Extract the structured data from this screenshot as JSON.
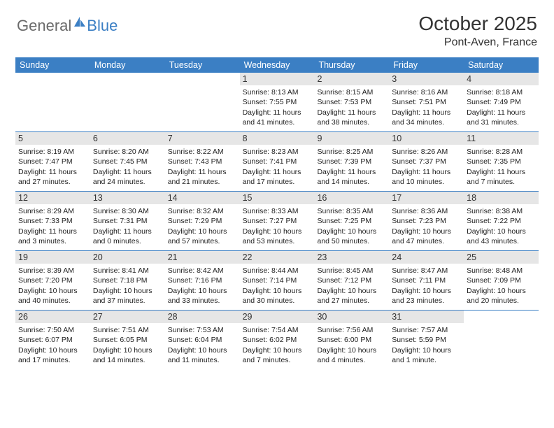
{
  "brand": {
    "text1": "General",
    "text2": "Blue"
  },
  "title": "October 2025",
  "location": "Pont-Aven, France",
  "dow": [
    "Sunday",
    "Monday",
    "Tuesday",
    "Wednesday",
    "Thursday",
    "Friday",
    "Saturday"
  ],
  "layout": {
    "header_color": "#3b7fc4",
    "daynum_bg": "#e6e6e6",
    "font_size_title": 28,
    "font_size_dow": 12.5,
    "font_size_daynum": 12.5,
    "font_size_info": 10.5
  },
  "weeks": [
    [
      {
        "n": "",
        "sr": "",
        "ss": "",
        "dl": ""
      },
      {
        "n": "",
        "sr": "",
        "ss": "",
        "dl": ""
      },
      {
        "n": "",
        "sr": "",
        "ss": "",
        "dl": ""
      },
      {
        "n": "1",
        "sr": "Sunrise: 8:13 AM",
        "ss": "Sunset: 7:55 PM",
        "dl": "Daylight: 11 hours and 41 minutes."
      },
      {
        "n": "2",
        "sr": "Sunrise: 8:15 AM",
        "ss": "Sunset: 7:53 PM",
        "dl": "Daylight: 11 hours and 38 minutes."
      },
      {
        "n": "3",
        "sr": "Sunrise: 8:16 AM",
        "ss": "Sunset: 7:51 PM",
        "dl": "Daylight: 11 hours and 34 minutes."
      },
      {
        "n": "4",
        "sr": "Sunrise: 8:18 AM",
        "ss": "Sunset: 7:49 PM",
        "dl": "Daylight: 11 hours and 31 minutes."
      }
    ],
    [
      {
        "n": "5",
        "sr": "Sunrise: 8:19 AM",
        "ss": "Sunset: 7:47 PM",
        "dl": "Daylight: 11 hours and 27 minutes."
      },
      {
        "n": "6",
        "sr": "Sunrise: 8:20 AM",
        "ss": "Sunset: 7:45 PM",
        "dl": "Daylight: 11 hours and 24 minutes."
      },
      {
        "n": "7",
        "sr": "Sunrise: 8:22 AM",
        "ss": "Sunset: 7:43 PM",
        "dl": "Daylight: 11 hours and 21 minutes."
      },
      {
        "n": "8",
        "sr": "Sunrise: 8:23 AM",
        "ss": "Sunset: 7:41 PM",
        "dl": "Daylight: 11 hours and 17 minutes."
      },
      {
        "n": "9",
        "sr": "Sunrise: 8:25 AM",
        "ss": "Sunset: 7:39 PM",
        "dl": "Daylight: 11 hours and 14 minutes."
      },
      {
        "n": "10",
        "sr": "Sunrise: 8:26 AM",
        "ss": "Sunset: 7:37 PM",
        "dl": "Daylight: 11 hours and 10 minutes."
      },
      {
        "n": "11",
        "sr": "Sunrise: 8:28 AM",
        "ss": "Sunset: 7:35 PM",
        "dl": "Daylight: 11 hours and 7 minutes."
      }
    ],
    [
      {
        "n": "12",
        "sr": "Sunrise: 8:29 AM",
        "ss": "Sunset: 7:33 PM",
        "dl": "Daylight: 11 hours and 3 minutes."
      },
      {
        "n": "13",
        "sr": "Sunrise: 8:30 AM",
        "ss": "Sunset: 7:31 PM",
        "dl": "Daylight: 11 hours and 0 minutes."
      },
      {
        "n": "14",
        "sr": "Sunrise: 8:32 AM",
        "ss": "Sunset: 7:29 PM",
        "dl": "Daylight: 10 hours and 57 minutes."
      },
      {
        "n": "15",
        "sr": "Sunrise: 8:33 AM",
        "ss": "Sunset: 7:27 PM",
        "dl": "Daylight: 10 hours and 53 minutes."
      },
      {
        "n": "16",
        "sr": "Sunrise: 8:35 AM",
        "ss": "Sunset: 7:25 PM",
        "dl": "Daylight: 10 hours and 50 minutes."
      },
      {
        "n": "17",
        "sr": "Sunrise: 8:36 AM",
        "ss": "Sunset: 7:23 PM",
        "dl": "Daylight: 10 hours and 47 minutes."
      },
      {
        "n": "18",
        "sr": "Sunrise: 8:38 AM",
        "ss": "Sunset: 7:22 PM",
        "dl": "Daylight: 10 hours and 43 minutes."
      }
    ],
    [
      {
        "n": "19",
        "sr": "Sunrise: 8:39 AM",
        "ss": "Sunset: 7:20 PM",
        "dl": "Daylight: 10 hours and 40 minutes."
      },
      {
        "n": "20",
        "sr": "Sunrise: 8:41 AM",
        "ss": "Sunset: 7:18 PM",
        "dl": "Daylight: 10 hours and 37 minutes."
      },
      {
        "n": "21",
        "sr": "Sunrise: 8:42 AM",
        "ss": "Sunset: 7:16 PM",
        "dl": "Daylight: 10 hours and 33 minutes."
      },
      {
        "n": "22",
        "sr": "Sunrise: 8:44 AM",
        "ss": "Sunset: 7:14 PM",
        "dl": "Daylight: 10 hours and 30 minutes."
      },
      {
        "n": "23",
        "sr": "Sunrise: 8:45 AM",
        "ss": "Sunset: 7:12 PM",
        "dl": "Daylight: 10 hours and 27 minutes."
      },
      {
        "n": "24",
        "sr": "Sunrise: 8:47 AM",
        "ss": "Sunset: 7:11 PM",
        "dl": "Daylight: 10 hours and 23 minutes."
      },
      {
        "n": "25",
        "sr": "Sunrise: 8:48 AM",
        "ss": "Sunset: 7:09 PM",
        "dl": "Daylight: 10 hours and 20 minutes."
      }
    ],
    [
      {
        "n": "26",
        "sr": "Sunrise: 7:50 AM",
        "ss": "Sunset: 6:07 PM",
        "dl": "Daylight: 10 hours and 17 minutes."
      },
      {
        "n": "27",
        "sr": "Sunrise: 7:51 AM",
        "ss": "Sunset: 6:05 PM",
        "dl": "Daylight: 10 hours and 14 minutes."
      },
      {
        "n": "28",
        "sr": "Sunrise: 7:53 AM",
        "ss": "Sunset: 6:04 PM",
        "dl": "Daylight: 10 hours and 11 minutes."
      },
      {
        "n": "29",
        "sr": "Sunrise: 7:54 AM",
        "ss": "Sunset: 6:02 PM",
        "dl": "Daylight: 10 hours and 7 minutes."
      },
      {
        "n": "30",
        "sr": "Sunrise: 7:56 AM",
        "ss": "Sunset: 6:00 PM",
        "dl": "Daylight: 10 hours and 4 minutes."
      },
      {
        "n": "31",
        "sr": "Sunrise: 7:57 AM",
        "ss": "Sunset: 5:59 PM",
        "dl": "Daylight: 10 hours and 1 minute."
      },
      {
        "n": "",
        "sr": "",
        "ss": "",
        "dl": ""
      }
    ]
  ]
}
